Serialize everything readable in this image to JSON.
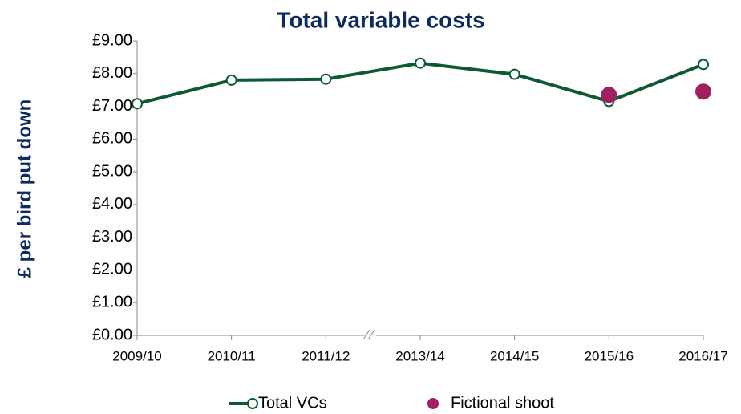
{
  "chart_data": {
    "type": "line",
    "title": "Total variable costs",
    "y_label": "£ per bird put down",
    "categories": [
      "2009/10",
      "2010/11",
      "2011/12",
      "2013/14",
      "2014/15",
      "2015/16",
      "2016/17"
    ],
    "series": [
      {
        "name": "Total VCs",
        "color": "#0b5a32",
        "type": "line",
        "values": [
          7.08,
          7.8,
          7.83,
          8.32,
          7.98,
          7.15,
          8.28
        ]
      },
      {
        "name": "Fictional shoot",
        "color": "#a0205f",
        "type": "scatter",
        "values": [
          null,
          null,
          null,
          null,
          null,
          7.35,
          7.45
        ]
      }
    ],
    "ylim": [
      0,
      9
    ],
    "yticks": [
      {
        "value": 0,
        "label": "£0.00"
      },
      {
        "value": 1,
        "label": "£1.00"
      },
      {
        "value": 2,
        "label": "£2.00"
      },
      {
        "value": 3,
        "label": "£3.00"
      },
      {
        "value": 4,
        "label": "£4.00"
      },
      {
        "value": 5,
        "label": "£5.00"
      },
      {
        "value": 6,
        "label": "£6.00"
      },
      {
        "value": 7,
        "label": "£7.00"
      },
      {
        "value": 8,
        "label": "£8.00"
      },
      {
        "value": 9,
        "label": "£9.00"
      }
    ],
    "legend": "bottom"
  }
}
